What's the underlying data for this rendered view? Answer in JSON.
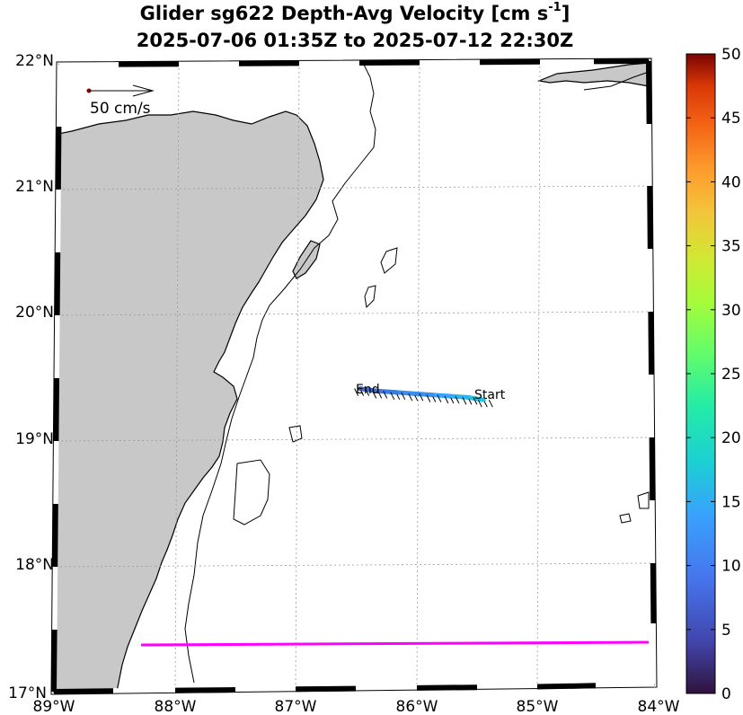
{
  "title": {
    "line1_prefix": "Glider sg622 Depth-Avg Velocity [cm s",
    "line1_sup": "-1",
    "line1_suffix": "]",
    "line2": "2025-07-06 01:35Z to 2025-07-12 22:30Z"
  },
  "map": {
    "lon_range": [
      -89,
      -84
    ],
    "lat_range": [
      17,
      22
    ],
    "lon_ticks": [
      "89°W",
      "88°W",
      "87°W",
      "86°W",
      "85°W",
      "84°W"
    ],
    "lat_ticks": [
      "22°N",
      "21°N",
      "20°N",
      "19°N",
      "18°N",
      "17°N"
    ],
    "grid": true,
    "land_color": "#c8c8c8",
    "section_line_color": "#ff00ff",
    "reference_arrow_label": "50 cm/s",
    "track_labels": {
      "start": "Start",
      "end": "End"
    }
  },
  "colorbar": {
    "ticks": [
      "50",
      "45",
      "40",
      "35",
      "30",
      "25",
      "20",
      "15",
      "10",
      "5",
      "0"
    ],
    "range": [
      0,
      50
    ],
    "colormap": "turbo"
  },
  "chart_data": {
    "type": "scatter",
    "title": "Glider sg622 Depth-Avg Velocity [cm s-1] 2025-07-06 01:35Z to 2025-07-12 22:30Z",
    "xlim": [
      -89,
      -84
    ],
    "ylim": [
      17,
      22
    ],
    "track": {
      "lon": [
        -85.42,
        -85.55,
        -85.7,
        -85.85,
        -86.0,
        -86.15,
        -86.3,
        -86.45
      ],
      "lat": [
        19.32,
        19.34,
        19.35,
        19.36,
        19.37,
        19.38,
        19.39,
        19.41
      ],
      "speed": [
        14,
        12,
        10,
        9,
        9,
        8,
        7,
        6
      ]
    },
    "section_line": {
      "lon": [
        -88.3,
        -84.0
      ],
      "lat": [
        17.38,
        17.4
      ]
    }
  }
}
